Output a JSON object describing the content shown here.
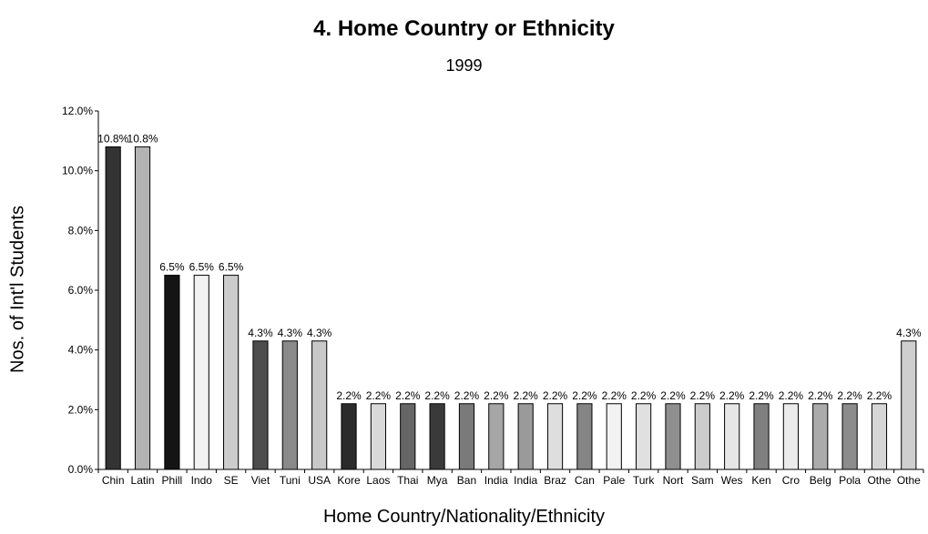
{
  "chart_data": {
    "type": "bar",
    "title": "4. Home Country or Ethnicity",
    "subtitle": "1999",
    "xlabel": "Home Country/Nationality/Ethnicity",
    "ylabel": "Nos. of Int'l Students",
    "ylim": [
      0,
      12
    ],
    "yticks": [
      "0.0%",
      "2.0%",
      "4.0%",
      "6.0%",
      "8.0%",
      "10.0%",
      "12.0%"
    ],
    "categories": [
      "Chin",
      "Latin",
      "Phill",
      "Indo",
      "SE",
      "Viet",
      "Tuni",
      "USA",
      "Kore",
      "Laos",
      "Thai",
      "Mya",
      "Ban",
      "India",
      "India",
      "Braz",
      "Can",
      "Pale",
      "Turk",
      "Nort",
      "Sam",
      "Wes",
      "Ken",
      "Cro",
      "Belg",
      "Pola",
      "Othe",
      "Othe"
    ],
    "values": [
      10.8,
      10.8,
      6.5,
      6.5,
      6.5,
      4.3,
      4.3,
      4.3,
      2.2,
      2.2,
      2.2,
      2.2,
      2.2,
      2.2,
      2.2,
      2.2,
      2.2,
      2.2,
      2.2,
      2.2,
      2.2,
      2.2,
      2.2,
      2.2,
      2.2,
      2.2,
      2.2,
      4.3
    ],
    "data_labels": [
      "10.8%",
      "10.8%",
      "6.5%",
      "6.5%",
      "6.5%",
      "4.3%",
      "4.3%",
      "4.3%",
      "2.2%",
      "2.2%",
      "2.2%",
      "2.2%",
      "2.2%",
      "2.2%",
      "2.2%",
      "2.2%",
      "2.2%",
      "2.2%",
      "2.2%",
      "2.2%",
      "2.2%",
      "2.2%",
      "2.2%",
      "2.2%",
      "2.2%",
      "2.2%",
      "2.2%",
      "4.3%"
    ],
    "bar_colors": [
      "#333333",
      "#b3b3b3",
      "#141414",
      "#f2f2f2",
      "#cccccc",
      "#4d4d4d",
      "#8a8a8a",
      "#c8c8c8",
      "#2b2b2b",
      "#d9d9d9",
      "#666666",
      "#3a3a3a",
      "#7a7a7a",
      "#a6a6a6",
      "#9a9a9a",
      "#dedede",
      "#858585",
      "#f2f2f2",
      "#e0e0e0",
      "#8f8f8f",
      "#cccccc",
      "#e6e6e6",
      "#808080",
      "#ebebeb",
      "#ababab",
      "#8c8c8c",
      "#d6d6d6",
      "#cfcfcf"
    ],
    "grid": false,
    "legend": "none"
  }
}
